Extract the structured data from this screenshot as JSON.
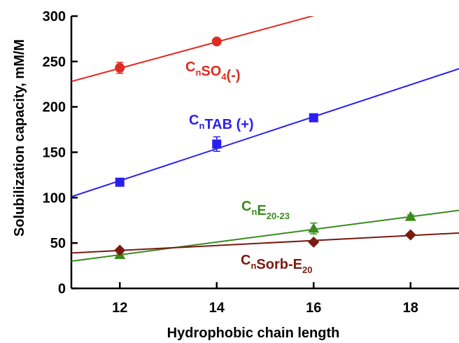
{
  "chart_data": {
    "type": "scatter",
    "xlabel": "Hydrophobic chain length",
    "ylabel": "Solubilization capacity, mM/M",
    "xlim": [
      11,
      19
    ],
    "ylim": [
      0,
      300
    ],
    "x_ticks": [
      "12",
      "14",
      "16",
      "18"
    ],
    "y_ticks": [
      "0",
      "50",
      "100",
      "150",
      "200",
      "250",
      "300"
    ],
    "grid": false,
    "series": [
      {
        "name": "CnSO4(-)",
        "label_parts": [
          [
            "C",
            ""
          ],
          [
            "n",
            "sub"
          ],
          [
            "SO",
            ""
          ],
          [
            "4",
            "sub"
          ],
          [
            "(-)",
            ""
          ]
        ],
        "color": "#e02b20",
        "marker": "circle",
        "x": [
          12,
          14
        ],
        "y": [
          243,
          272
        ],
        "err": [
          6,
          3
        ],
        "fit": [
          [
            11,
            228
          ],
          [
            19,
            344
          ]
        ]
      },
      {
        "name": "CnTAB (+)",
        "label_parts": [
          [
            "C",
            ""
          ],
          [
            "n",
            "sub"
          ],
          [
            "TAB (+)",
            ""
          ]
        ],
        "color": "#2a1ff0",
        "marker": "square",
        "x": [
          12,
          14,
          16
        ],
        "y": [
          117,
          159,
          188
        ],
        "err": [
          3,
          8,
          3
        ],
        "fit": [
          [
            11,
            101
          ],
          [
            19,
            242
          ]
        ]
      },
      {
        "name": "CnE20-23",
        "label_parts": [
          [
            "C",
            ""
          ],
          [
            "n",
            "sub"
          ],
          [
            "E",
            ""
          ],
          [
            "20-23",
            "sub"
          ]
        ],
        "color": "#3a8a1e",
        "marker": "triangle",
        "x": [
          12,
          16,
          18
        ],
        "y": [
          37,
          66,
          79
        ],
        "err": [
          2,
          6,
          2
        ],
        "fit": [
          [
            11,
            30
          ],
          [
            19,
            86
          ]
        ]
      },
      {
        "name": "CnSorb-E20",
        "label_parts": [
          [
            "C",
            ""
          ],
          [
            "n",
            "sub"
          ],
          [
            "Sorb-E",
            ""
          ],
          [
            "20",
            "sub"
          ]
        ],
        "color": "#7a1a10",
        "marker": "diamond",
        "x": [
          12,
          16,
          18
        ],
        "y": [
          42,
          51,
          59
        ],
        "err": [
          0,
          0,
          0
        ],
        "fit": [
          [
            11,
            39
          ],
          [
            19,
            61
          ]
        ]
      }
    ]
  }
}
